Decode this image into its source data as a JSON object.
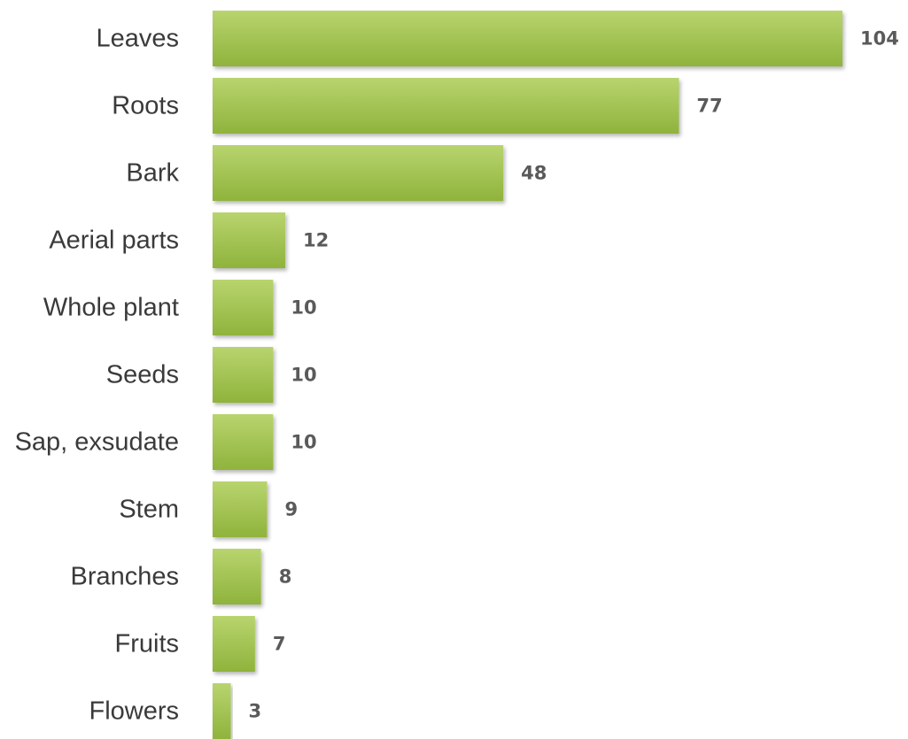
{
  "chart_data": {
    "type": "bar",
    "orientation": "horizontal",
    "categories": [
      "Leaves",
      "Roots",
      "Bark",
      "Aerial parts",
      "Whole plant",
      "Seeds",
      "Sap, exsudate",
      "Stem",
      "Branches",
      "Fruits",
      "Flowers"
    ],
    "values": [
      104,
      77,
      48,
      12,
      10,
      10,
      10,
      9,
      8,
      7,
      3
    ],
    "title": "",
    "xlabel": "",
    "ylabel": "",
    "xlim": [
      0,
      104
    ],
    "grid": false,
    "legend": "none",
    "data_labels": true,
    "colors": {
      "bar_light": "#b8d46e",
      "bar_dark": "#8fb33c",
      "category_text": "#3a3a3a",
      "value_text": "#5a5a5a"
    }
  }
}
